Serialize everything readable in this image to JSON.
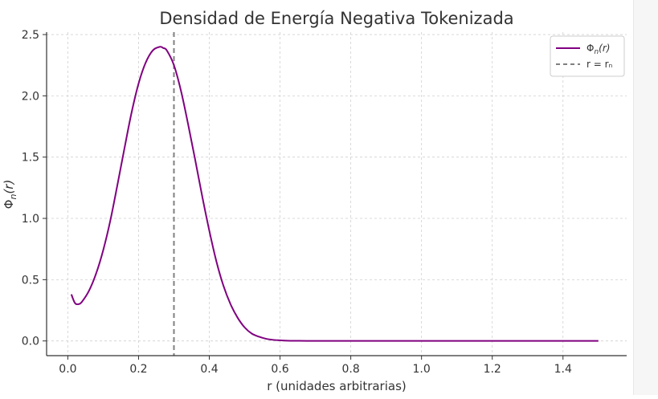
{
  "chart_data": {
    "type": "line",
    "title": "Densidad de Energía Negativa Tokenizada",
    "xlabel": "r (unidades arbitrarias)",
    "ylabel_main": "Φ",
    "ylabel_sub": "n",
    "ylabel_arg": "(r)",
    "xlim": [
      -0.06,
      1.58
    ],
    "ylim": [
      -0.12,
      2.52
    ],
    "xticks": [
      0.0,
      0.2,
      0.4,
      0.6,
      0.8,
      1.0,
      1.2,
      1.4
    ],
    "xtick_labels": [
      "0.0",
      "0.2",
      "0.4",
      "0.6",
      "0.8",
      "1.0",
      "1.2",
      "1.4"
    ],
    "yticks": [
      0.0,
      0.5,
      1.0,
      1.5,
      2.0,
      2.5
    ],
    "ytick_labels": [
      "0.0",
      "0.5",
      "1.0",
      "1.5",
      "2.0",
      "2.5"
    ],
    "grid": true,
    "legend_position": "top-right",
    "colors": {
      "series": "#800080",
      "vline": "#808080",
      "grid": "#d0d0d0"
    },
    "series": [
      {
        "name": "Φn(r)",
        "legend_main": "Φ",
        "legend_sub": "n",
        "legend_arg": "(r)",
        "x": [
          0.01,
          0.02,
          0.03,
          0.04,
          0.06,
          0.08,
          0.1,
          0.12,
          0.14,
          0.16,
          0.18,
          0.2,
          0.22,
          0.24,
          0.26,
          0.27,
          0.28,
          0.3,
          0.32,
          0.34,
          0.36,
          0.38,
          0.4,
          0.42,
          0.44,
          0.46,
          0.48,
          0.5,
          0.52,
          0.54,
          0.56,
          0.58,
          0.6,
          0.62,
          0.65,
          0.7,
          0.8,
          1.0,
          1.2,
          1.4,
          1.5
        ],
        "y": [
          0.38,
          0.31,
          0.3,
          0.32,
          0.41,
          0.55,
          0.74,
          0.98,
          1.27,
          1.57,
          1.86,
          2.1,
          2.27,
          2.37,
          2.4,
          2.39,
          2.37,
          2.25,
          2.04,
          1.77,
          1.48,
          1.18,
          0.9,
          0.65,
          0.45,
          0.3,
          0.19,
          0.11,
          0.06,
          0.035,
          0.018,
          0.009,
          0.005,
          0.002,
          0.001,
          0.0,
          0.0,
          0.0,
          0.0,
          0.0,
          0.0
        ]
      }
    ],
    "reference_line": {
      "x": 0.3,
      "label": "r = rₙ"
    }
  }
}
